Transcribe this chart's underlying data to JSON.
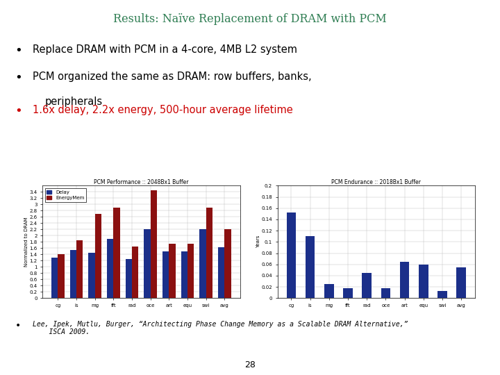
{
  "title": "Results: Naïve Replacement of DRAM with PCM",
  "title_color": "#2E7D52",
  "bullet1": "Replace DRAM with PCM in a 4-core, 4MB L2 system",
  "bullet2_line1": "PCM organized the same as DRAM: row buffers, banks,",
  "bullet2_line2": "peripherals",
  "bullet3": "1.6x delay, 2.2x energy, 500-hour average lifetime",
  "bullet3_color": "#CC0000",
  "footnote_plain": "Lee, Ipek, Mutlu, Burger, ",
  "footnote_italic": "“Architecting Phase Change Memory as a Scalable DRAM Alternative,”",
  "footnote_plain2": "\n    ISCA 2009.",
  "page_num": "28",
  "chart1_title": "PCM Performance :: 2048Bx1 Buffer",
  "chart1_ylabel": "Normalized to DRAM",
  "chart1_ylim": [
    0,
    3.6
  ],
  "chart1_ytick_labels": [
    "0",
    "0.2",
    "0.4",
    "0.6",
    "0.8",
    "1",
    "1.2",
    "1.4",
    "1.6",
    "1.8",
    "2",
    "2.2",
    "2.4",
    "2.6",
    "2.8",
    "3",
    "3.2",
    "3.4"
  ],
  "chart1_yticks": [
    0,
    0.2,
    0.4,
    0.6,
    0.8,
    1.0,
    1.2,
    1.4,
    1.6,
    1.8,
    2.0,
    2.2,
    2.4,
    2.6,
    2.8,
    3.0,
    3.2,
    3.4
  ],
  "chart1_categories": [
    "cg",
    "is",
    "mg",
    "fft",
    "rad",
    "oce",
    "art",
    "equ",
    "swi",
    "avg"
  ],
  "chart1_delay": [
    1.3,
    1.55,
    1.45,
    1.9,
    1.25,
    2.2,
    1.5,
    1.5,
    2.2,
    1.62
  ],
  "chart1_energy": [
    1.4,
    1.85,
    2.7,
    2.9,
    1.65,
    3.45,
    1.75,
    1.75,
    2.9,
    2.2
  ],
  "delay_color": "#1B2F8A",
  "energy_color": "#8B1010",
  "chart2_title": "PCM Endurance :: 2018Bx1 Buffer",
  "chart2_ylabel": "Years",
  "chart2_ylim": [
    0,
    0.2
  ],
  "chart2_ytick_labels": [
    "0",
    "0.02",
    "0.04",
    "0.06",
    "0.08",
    "0.1",
    "0.12",
    "0.14",
    "0.16",
    "0.18",
    "0.2"
  ],
  "chart2_yticks": [
    0,
    0.02,
    0.04,
    0.06,
    0.08,
    0.1,
    0.12,
    0.14,
    0.16,
    0.18,
    0.2
  ],
  "chart2_categories": [
    "cg",
    "is",
    "mg",
    "fft",
    "rad",
    "oce",
    "art",
    "equ",
    "swi",
    "avg"
  ],
  "chart2_years": [
    0.152,
    0.11,
    0.025,
    0.018,
    0.045,
    0.018,
    0.065,
    0.06,
    0.013,
    0.055
  ],
  "endurance_color": "#1B2F8A",
  "bg_color": "#FFFFFF"
}
